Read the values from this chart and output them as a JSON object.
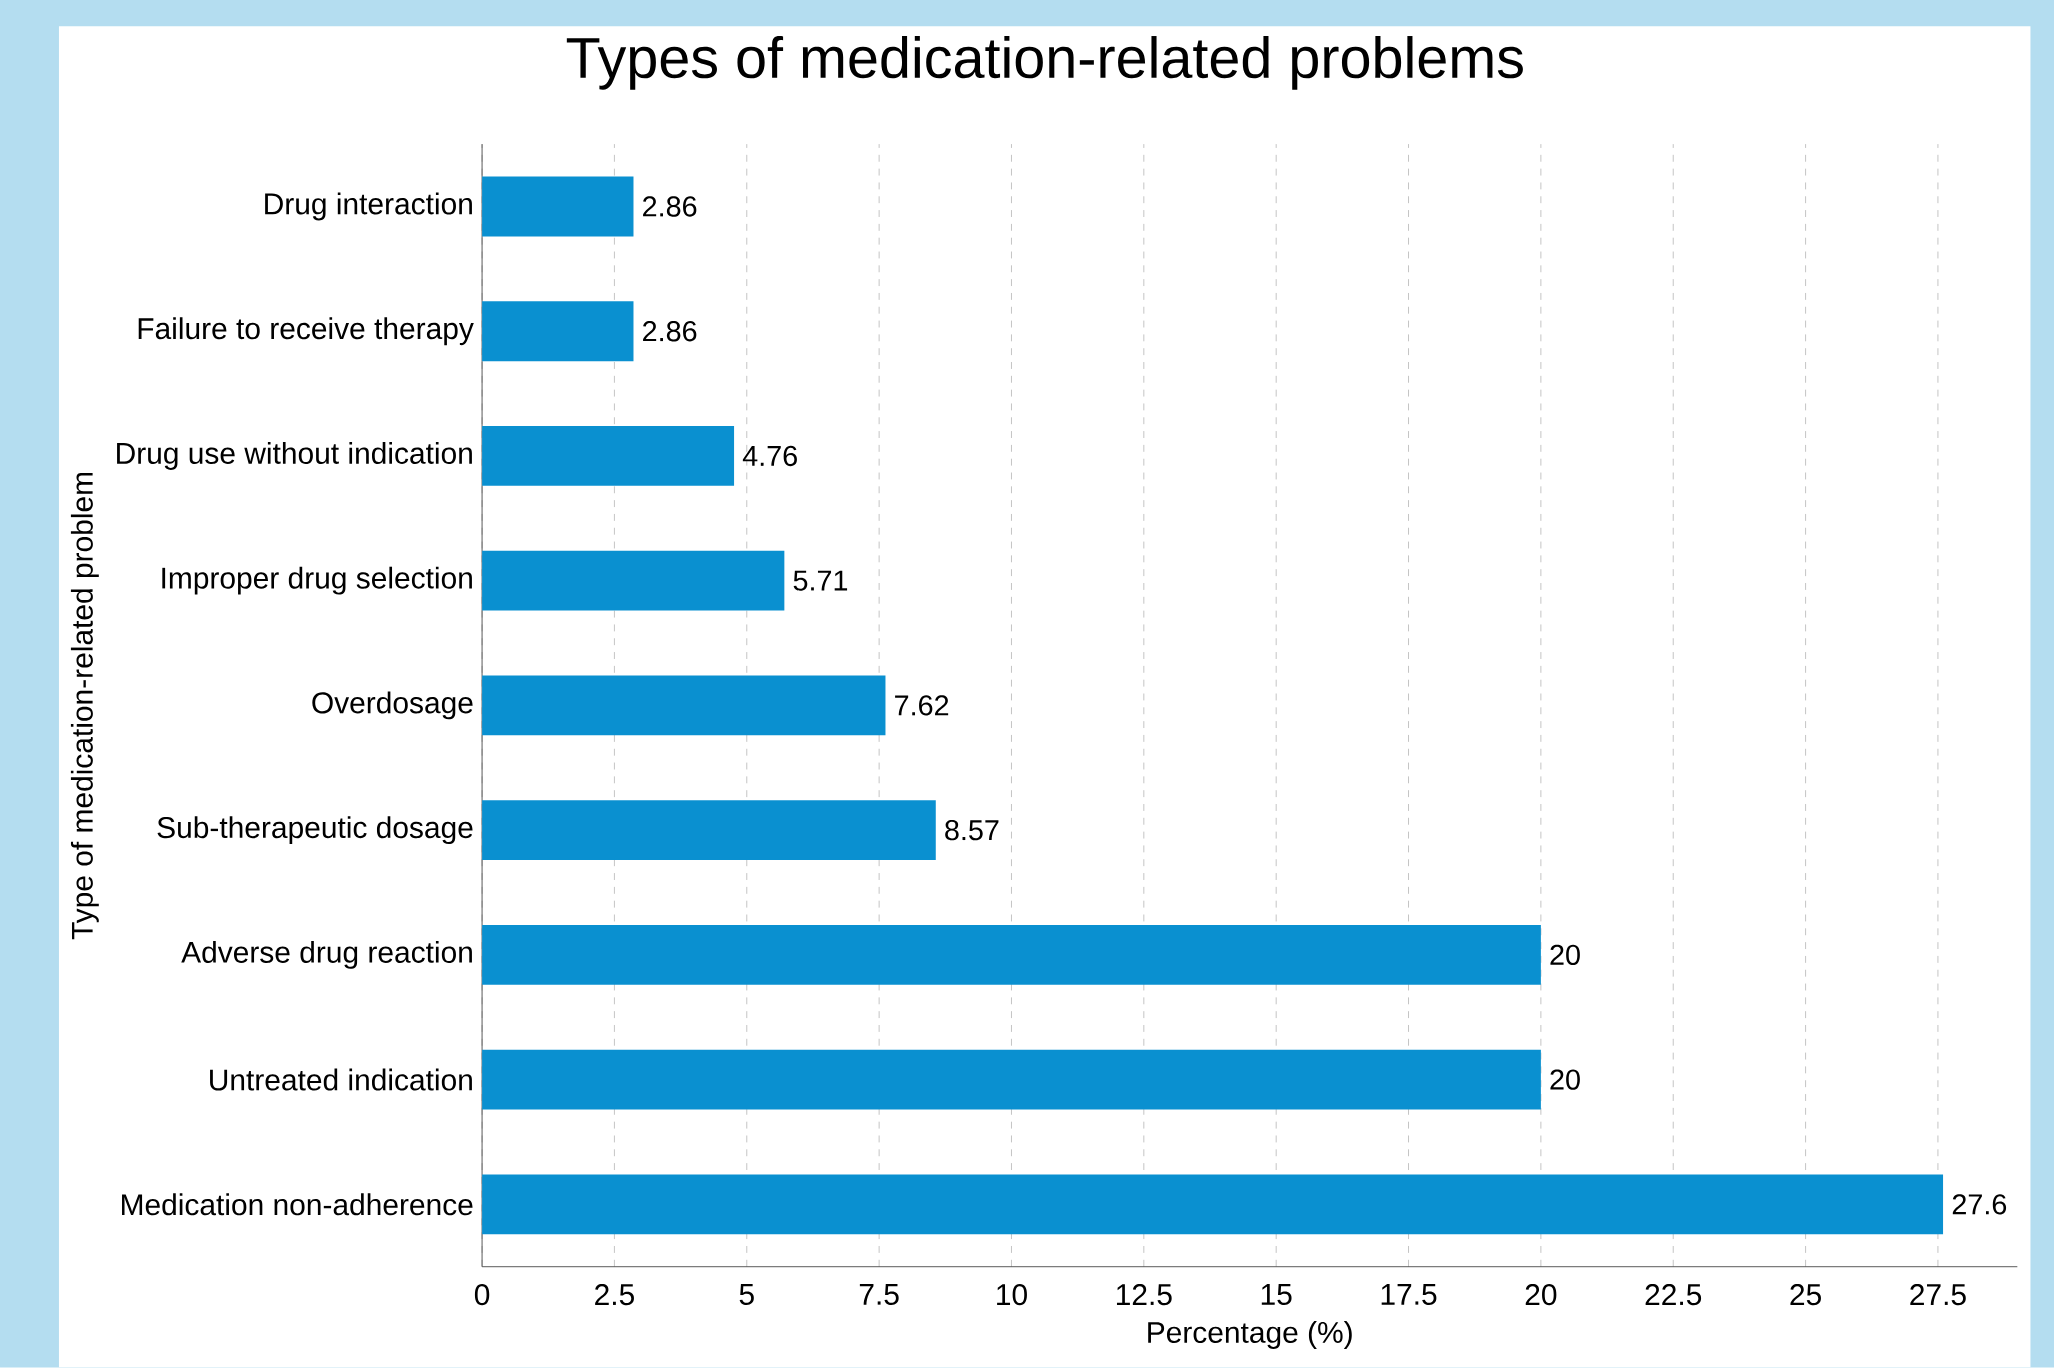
{
  "chart_data": {
    "type": "bar",
    "orientation": "horizontal",
    "title": "Types of medication-related problems",
    "xlabel": "Percentage (%)",
    "ylabel": "Type of medication-related problem",
    "categories": [
      "Drug interaction",
      "Failure to receive therapy",
      "Drug use without indication",
      "Improper drug selection",
      "Overdosage",
      "Sub-therapeutic dosage",
      "Adverse drug reaction",
      "Untreated indication",
      "Medication non-adherence"
    ],
    "values": [
      2.86,
      2.86,
      4.76,
      5.71,
      7.62,
      8.57,
      20,
      20,
      27.6
    ],
    "color": "#0a90d0",
    "xlim": [
      0,
      29
    ],
    "xticks": [
      0,
      2.5,
      5,
      7.5,
      10,
      12.5,
      15,
      17.5,
      20,
      22.5,
      25,
      27.5
    ],
    "grid": "x",
    "data_labels": true
  }
}
